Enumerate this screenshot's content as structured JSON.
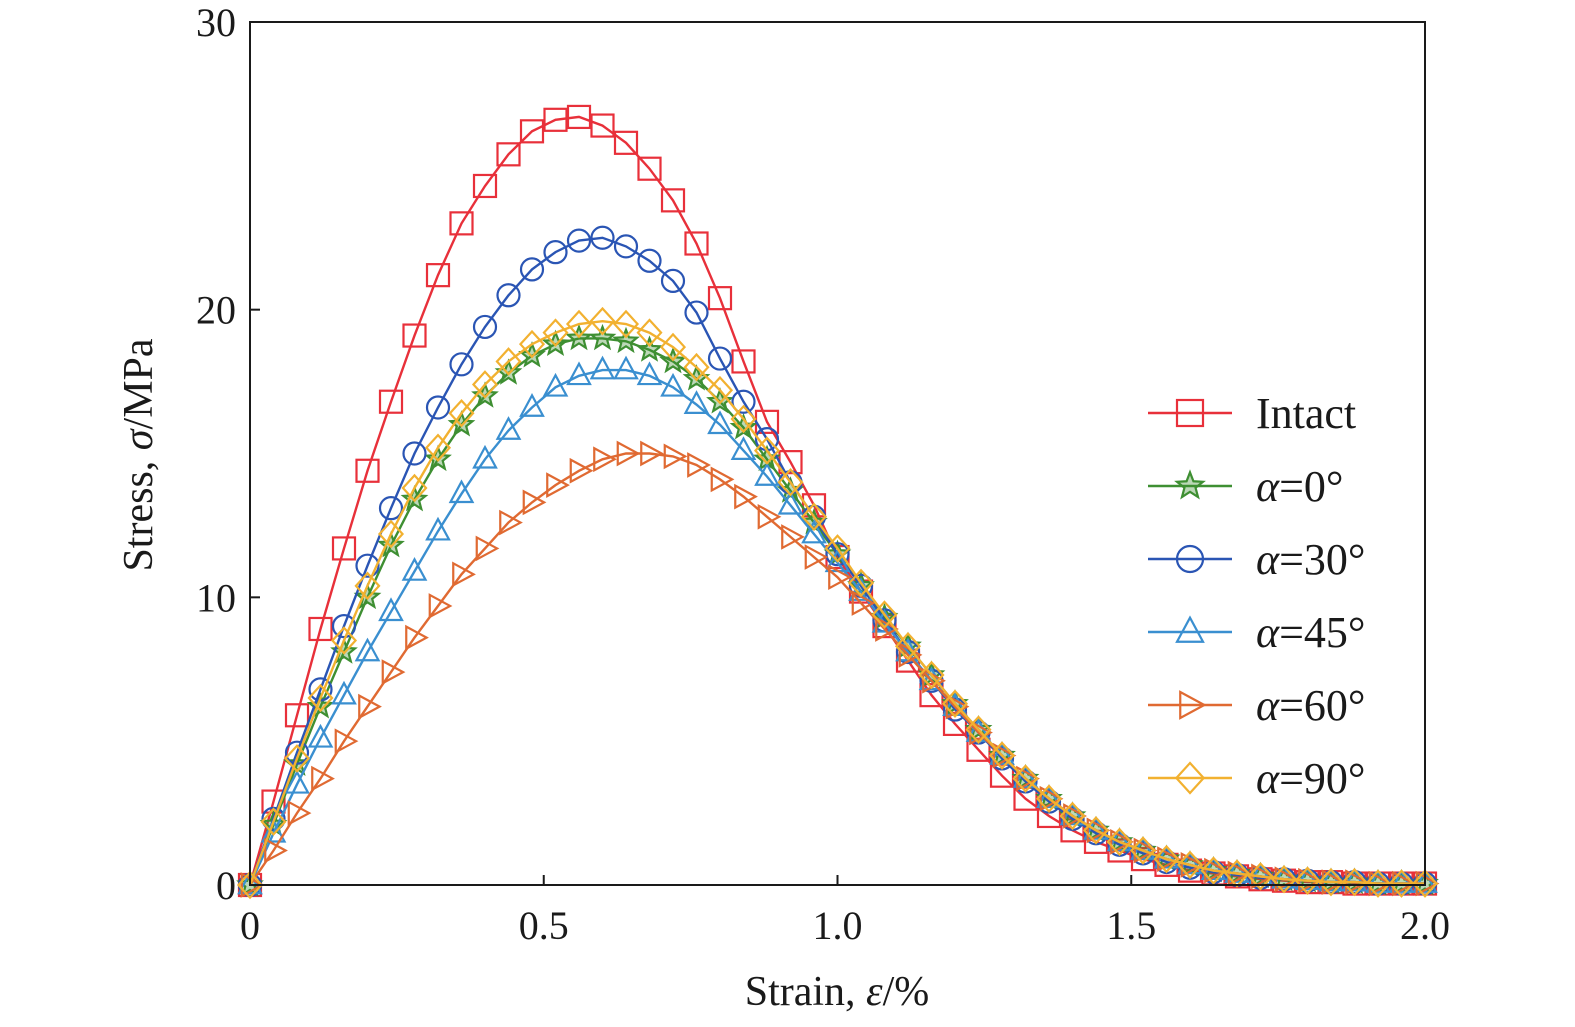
{
  "chart_data": {
    "type": "line",
    "title": "",
    "xlabel": {
      "prefix": "Strain, ",
      "symbol": "ε",
      "suffix": "/%"
    },
    "ylabel": {
      "prefix": "Stress, ",
      "symbol": "σ",
      "suffix": "/MPa"
    },
    "xlim": [
      0,
      2.0
    ],
    "ylim": [
      0,
      30
    ],
    "xticks": [
      0,
      0.5,
      1.0,
      1.5,
      2.0
    ],
    "xtick_labels": [
      "0",
      "0.5",
      "1.0",
      "1.5",
      "2.0"
    ],
    "yticks": [
      0,
      10,
      20,
      30
    ],
    "ytick_labels": [
      "0",
      "10",
      "20",
      "30"
    ],
    "grid": false,
    "legend_position": "right",
    "x": [
      0,
      0.04,
      0.08,
      0.12,
      0.16,
      0.2,
      0.24,
      0.28,
      0.32,
      0.36,
      0.4,
      0.44,
      0.48,
      0.52,
      0.56,
      0.6,
      0.64,
      0.68,
      0.72,
      0.76,
      0.8,
      0.84,
      0.88,
      0.92,
      0.96,
      1.0,
      1.04,
      1.08,
      1.12,
      1.16,
      1.2,
      1.24,
      1.28,
      1.32,
      1.36,
      1.4,
      1.44,
      1.48,
      1.52,
      1.56,
      1.6,
      1.64,
      1.68,
      1.72,
      1.76,
      1.8,
      1.84,
      1.88,
      1.92,
      1.96,
      2.0
    ],
    "series": [
      {
        "name": "Intact",
        "color": "#e8303a",
        "marker": "square",
        "values": [
          0,
          2.9,
          5.9,
          8.9,
          11.7,
          14.4,
          16.8,
          19.1,
          21.2,
          23.0,
          24.3,
          25.4,
          26.2,
          26.6,
          26.7,
          26.4,
          25.8,
          24.9,
          23.8,
          22.3,
          20.4,
          18.2,
          16.1,
          14.7,
          13.2,
          11.4,
          10.2,
          9.0,
          7.8,
          6.6,
          5.6,
          4.7,
          3.8,
          3.0,
          2.4,
          1.9,
          1.5,
          1.2,
          0.9,
          0.7,
          0.5,
          0.4,
          0.3,
          0.2,
          0.15,
          0.1,
          0.1,
          0.05,
          0.05,
          0.05,
          0.05
        ]
      },
      {
        "name": "α=0°",
        "color": "#3e8f32",
        "marker": "star",
        "values": [
          0,
          2.1,
          4.2,
          6.2,
          8.1,
          10.0,
          11.8,
          13.4,
          14.8,
          16.0,
          17.0,
          17.8,
          18.4,
          18.8,
          19.0,
          19.0,
          18.9,
          18.6,
          18.2,
          17.6,
          16.8,
          15.9,
          14.8,
          13.7,
          12.6,
          11.5,
          10.4,
          9.3,
          8.3,
          7.3,
          6.3,
          5.4,
          4.5,
          3.7,
          3.0,
          2.4,
          1.9,
          1.5,
          1.2,
          0.9,
          0.7,
          0.5,
          0.4,
          0.3,
          0.2,
          0.15,
          0.1,
          0.1,
          0.05,
          0.05,
          0.05
        ]
      },
      {
        "name": "α=30°",
        "color": "#2a55b4",
        "marker": "circle",
        "values": [
          0,
          2.3,
          4.6,
          6.8,
          9.0,
          11.1,
          13.1,
          15.0,
          16.6,
          18.1,
          19.4,
          20.5,
          21.4,
          22.0,
          22.4,
          22.5,
          22.2,
          21.7,
          21.0,
          19.9,
          18.3,
          16.8,
          15.5,
          14.0,
          12.8,
          11.5,
          10.4,
          9.2,
          8.1,
          7.1,
          6.1,
          5.3,
          4.4,
          3.6,
          2.9,
          2.3,
          1.8,
          1.4,
          1.1,
          0.8,
          0.6,
          0.45,
          0.35,
          0.25,
          0.2,
          0.15,
          0.1,
          0.1,
          0.05,
          0.05,
          0.05
        ]
      },
      {
        "name": "α=45°",
        "color": "#3a8fd0",
        "marker": "triangle",
        "values": [
          0,
          1.8,
          3.5,
          5.1,
          6.6,
          8.1,
          9.5,
          10.9,
          12.3,
          13.6,
          14.8,
          15.8,
          16.6,
          17.3,
          17.7,
          17.9,
          17.9,
          17.7,
          17.3,
          16.7,
          16.0,
          15.1,
          14.2,
          13.2,
          12.2,
          11.2,
          10.2,
          9.1,
          8.1,
          7.1,
          6.2,
          5.3,
          4.5,
          3.7,
          3.0,
          2.4,
          1.9,
          1.5,
          1.2,
          0.9,
          0.7,
          0.5,
          0.4,
          0.3,
          0.2,
          0.15,
          0.1,
          0.1,
          0.05,
          0.05,
          0.05
        ]
      },
      {
        "name": "α=60°",
        "color": "#e06a32",
        "marker": "triangle-right",
        "values": [
          0,
          1.2,
          2.5,
          3.7,
          5.0,
          6.2,
          7.4,
          8.6,
          9.7,
          10.8,
          11.7,
          12.6,
          13.3,
          13.9,
          14.4,
          14.8,
          15.0,
          15.0,
          14.9,
          14.6,
          14.1,
          13.5,
          12.8,
          12.1,
          11.4,
          10.7,
          9.8,
          8.9,
          8.0,
          7.1,
          6.2,
          5.3,
          4.5,
          3.7,
          3.0,
          2.4,
          1.9,
          1.5,
          1.2,
          0.9,
          0.7,
          0.5,
          0.4,
          0.3,
          0.2,
          0.15,
          0.1,
          0.1,
          0.05,
          0.05,
          0.05
        ]
      },
      {
        "name": "α=90°",
        "color": "#f2b130",
        "marker": "diamond",
        "values": [
          0,
          2.2,
          4.4,
          6.5,
          8.5,
          10.4,
          12.2,
          13.8,
          15.2,
          16.4,
          17.4,
          18.2,
          18.8,
          19.2,
          19.5,
          19.6,
          19.5,
          19.2,
          18.7,
          18.0,
          17.2,
          16.2,
          15.1,
          14.0,
          12.8,
          11.7,
          10.5,
          9.4,
          8.3,
          7.3,
          6.3,
          5.4,
          4.5,
          3.7,
          3.0,
          2.4,
          1.9,
          1.5,
          1.2,
          0.9,
          0.7,
          0.5,
          0.4,
          0.3,
          0.2,
          0.15,
          0.1,
          0.1,
          0.05,
          0.05,
          0.05
        ]
      }
    ]
  }
}
